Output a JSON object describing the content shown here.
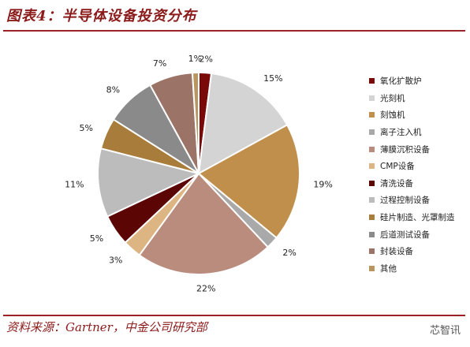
{
  "title": "图表4：半导体设备投资分布",
  "source": "资料来源：Gartner，中金公司研究部",
  "watermark": "芯智讯",
  "chart_data": {
    "type": "pie",
    "legend_position": "right",
    "slices": [
      {
        "label": "氧化扩散炉",
        "value": 2,
        "value_label": "2%",
        "color": "#7a0a0a"
      },
      {
        "label": "光刻机",
        "value": 15,
        "value_label": "15%",
        "color": "#d4d4d4"
      },
      {
        "label": "刻蚀机",
        "value": 19,
        "value_label": "19%",
        "color": "#c18f4c"
      },
      {
        "label": "离子注入机",
        "value": 2,
        "value_label": "2%",
        "color": "#a9a9a9"
      },
      {
        "label": "薄膜沉积设备",
        "value": 22,
        "value_label": "22%",
        "color": "#b98c7e"
      },
      {
        "label": "CMP设备",
        "value": 3,
        "value_label": "3%",
        "color": "#ddb582"
      },
      {
        "label": "清洗设备",
        "value": 5,
        "value_label": "5%",
        "color": "#5c0505"
      },
      {
        "label": "过程控制设备",
        "value": 11,
        "value_label": "11%",
        "color": "#bcbcbc"
      },
      {
        "label": "硅片制造、光罩制造",
        "value": 5,
        "value_label": "5%",
        "color": "#a87c3a"
      },
      {
        "label": "后道测试设备",
        "value": 8,
        "value_label": "8%",
        "color": "#8a8a8a"
      },
      {
        "label": "封装设备",
        "value": 7,
        "value_label": "7%",
        "color": "#9b7367"
      },
      {
        "label": "其他",
        "value": 1,
        "value_label": "1%",
        "color": "#b99660"
      }
    ]
  }
}
